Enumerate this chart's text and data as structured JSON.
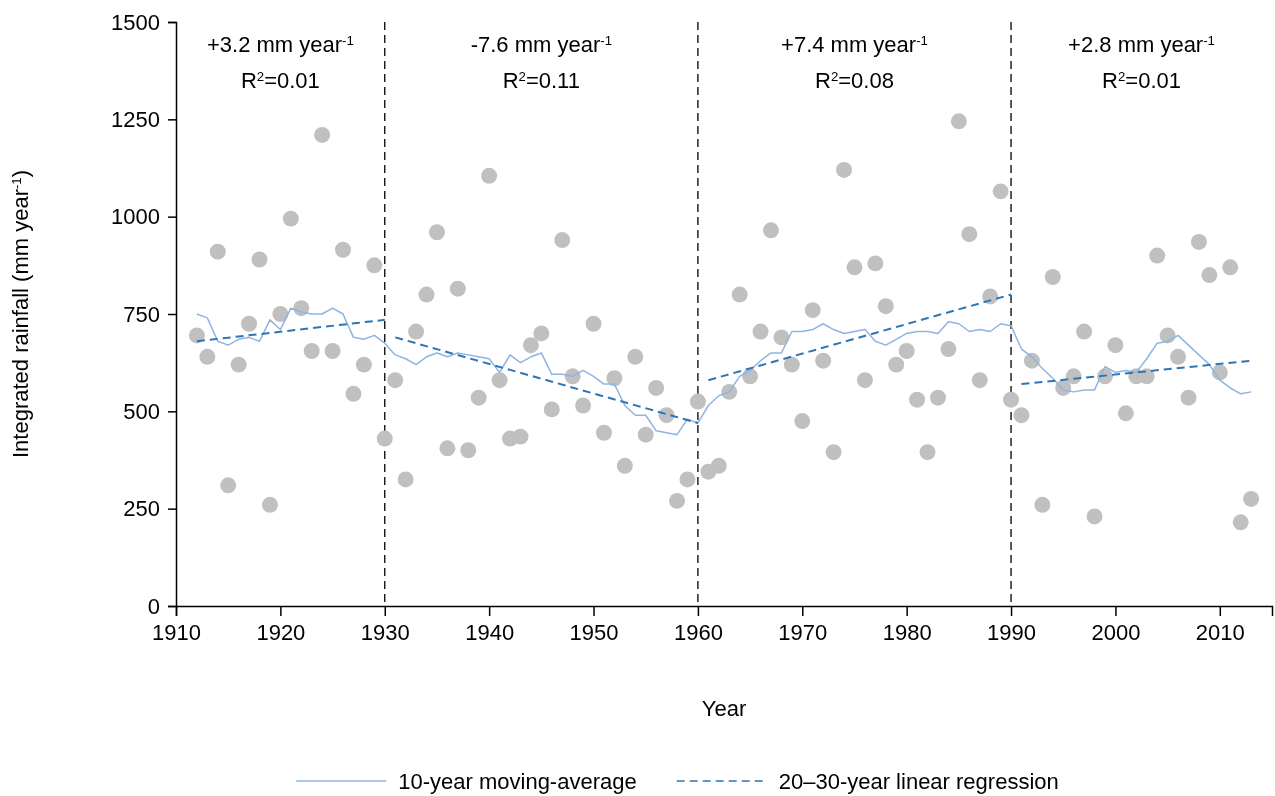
{
  "chart_data": {
    "type": "scatter",
    "xlabel": "Year",
    "ylabel": "Integrated rainfall (mm year$^{-1}$)",
    "xlim": [
      1910,
      2015
    ],
    "xticks": [
      1910,
      1920,
      1930,
      1940,
      1950,
      1960,
      1970,
      1980,
      1990,
      2000,
      2010
    ],
    "ylim": [
      0,
      1500
    ],
    "yticks": [
      0,
      250,
      500,
      750,
      1000,
      1250,
      1500
    ],
    "grid": false,
    "legend": "bottom",
    "marker": "circle",
    "series": [
      {
        "color": "#c0c0c0",
        "x": [
          1912,
          1913,
          1914,
          1915,
          1916,
          1917,
          1918,
          1919,
          1920,
          1921,
          1922,
          1923,
          1924,
          1925,
          1926,
          1927,
          1928,
          1929,
          1930,
          1931,
          1932,
          1933,
          1934,
          1935,
          1936,
          1937,
          1938,
          1939,
          1940,
          1941,
          1942,
          1943,
          1944,
          1945,
          1946,
          1947,
          1948,
          1949,
          1950,
          1951,
          1952,
          1953,
          1954,
          1955,
          1956,
          1957,
          1958,
          1959,
          1960,
          1961,
          1962,
          1963,
          1964,
          1965,
          1966,
          1967,
          1968,
          1969,
          1970,
          1971,
          1972,
          1973,
          1974,
          1975,
          1976,
          1977,
          1978,
          1979,
          1980,
          1981,
          1982,
          1983,
          1984,
          1985,
          1986,
          1987,
          1988,
          1989,
          1990,
          1991,
          1992,
          1993,
          1994,
          1995,
          1996,
          1997,
          1998,
          1999,
          2000,
          2001,
          2002,
          2003,
          2004,
          2005,
          2006,
          2007,
          2008,
          2009,
          2010,
          2011,
          2012,
          2013
        ],
        "values": [
          695,
          640,
          910,
          310,
          620,
          725,
          890,
          260,
          750,
          995,
          765,
          655,
          1210,
          655,
          915,
          545,
          620,
          875,
          430,
          580,
          325,
          705,
          800,
          960,
          405,
          815,
          400,
          535,
          1105,
          580,
          430,
          435,
          670,
          700,
          505,
          940,
          590,
          515,
          725,
          445,
          585,
          360,
          640,
          440,
          560,
          490,
          270,
          325,
          525,
          345,
          360,
          550,
          800,
          590,
          705,
          965,
          690,
          620,
          475,
          760,
          630,
          395,
          1120,
          870,
          580,
          880,
          770,
          620,
          655,
          530,
          395,
          535,
          660,
          1245,
          955,
          580,
          795,
          1065,
          530,
          490,
          630,
          260,
          845,
          560,
          590,
          705,
          230,
          590,
          670,
          495,
          590,
          590,
          900,
          695,
          640,
          535,
          935,
          850,
          600,
          870,
          215,
          275
        ]
      },
      {
        "type": "line",
        "name": "10-year moving-average",
        "color": "#8eb4e3",
        "line_style": "solid",
        "marker": "none",
        "x": [
          1912,
          1913,
          1914,
          1915,
          1916,
          1917,
          1918,
          1919,
          1920,
          1921,
          1922,
          1923,
          1924,
          1925,
          1926,
          1927,
          1928,
          1929,
          1930,
          1931,
          1932,
          1933,
          1934,
          1935,
          1936,
          1937,
          1938,
          1939,
          1940,
          1941,
          1942,
          1943,
          1944,
          1945,
          1946,
          1947,
          1948,
          1949,
          1950,
          1951,
          1952,
          1953,
          1954,
          1955,
          1956,
          1957,
          1958,
          1959,
          1960,
          1961,
          1962,
          1963,
          1964,
          1965,
          1966,
          1967,
          1968,
          1969,
          1970,
          1971,
          1972,
          1973,
          1974,
          1975,
          1976,
          1977,
          1978,
          1979,
          1980,
          1981,
          1982,
          1983,
          1984,
          1985,
          1986,
          1987,
          1988,
          1989,
          1990,
          1991,
          1992,
          1993,
          1994,
          1995,
          1996,
          1997,
          1998,
          1999,
          2000,
          2001,
          2002,
          2003,
          2004,
          2005,
          2006,
          2007,
          2008,
          2009,
          2010,
          2011,
          2012,
          2013
        ],
        "values": [
          750,
          740,
          680,
          670,
          685,
          690,
          680,
          735,
          710,
          765,
          755,
          750,
          750,
          765,
          750,
          690,
          685,
          695,
          675,
          645,
          635,
          620,
          640,
          650,
          640,
          650,
          645,
          640,
          635,
          600,
          645,
          625,
          640,
          650,
          595,
          595,
          590,
          605,
          590,
          570,
          570,
          515,
          490,
          490,
          450,
          445,
          440,
          480,
          470,
          515,
          540,
          550,
          590,
          605,
          630,
          650,
          650,
          705,
          705,
          710,
          725,
          710,
          700,
          705,
          710,
          680,
          670,
          685,
          700,
          705,
          705,
          700,
          730,
          725,
          705,
          710,
          705,
          725,
          720,
          660,
          640,
          610,
          585,
          555,
          550,
          555,
          555,
          615,
          600,
          605,
          600,
          635,
          675,
          680,
          695,
          670,
          645,
          620,
          580,
          560,
          545,
          550
        ]
      },
      {
        "type": "line",
        "name": "20–30-year linear regression",
        "color": "#2e75b6",
        "line_style": "dashed",
        "marker": "none",
        "x": [
          1912,
          1930,
          1930.5,
          1931,
          1960,
          1960.5,
          1961,
          1990,
          1990.5,
          1991,
          2013
        ],
        "values": [
          680,
          735,
          null,
          690,
          470,
          null,
          580,
          800,
          null,
          570,
          630
        ]
      }
    ],
    "ref_lines": [
      {
        "axis": "x",
        "value": 1930,
        "color": "#000000",
        "line_style": "dashed"
      },
      {
        "axis": "x",
        "value": 1960,
        "color": "#000000",
        "line_style": "dashed"
      },
      {
        "axis": "x",
        "value": 1990,
        "color": "#000000",
        "line_style": "dashed"
      }
    ],
    "annotations": [
      "+3.2 mm year$^{-1}$",
      "R$^{2}$=0.01",
      "-7.6 mm year$^{-1}$",
      "R$^{2}$=0.11",
      "+7.4 mm year$^{-1}$",
      "R$^{2}$=0.08",
      "+2.8 mm year$^{-1}$",
      "R$^{2}$=0.01"
    ]
  }
}
